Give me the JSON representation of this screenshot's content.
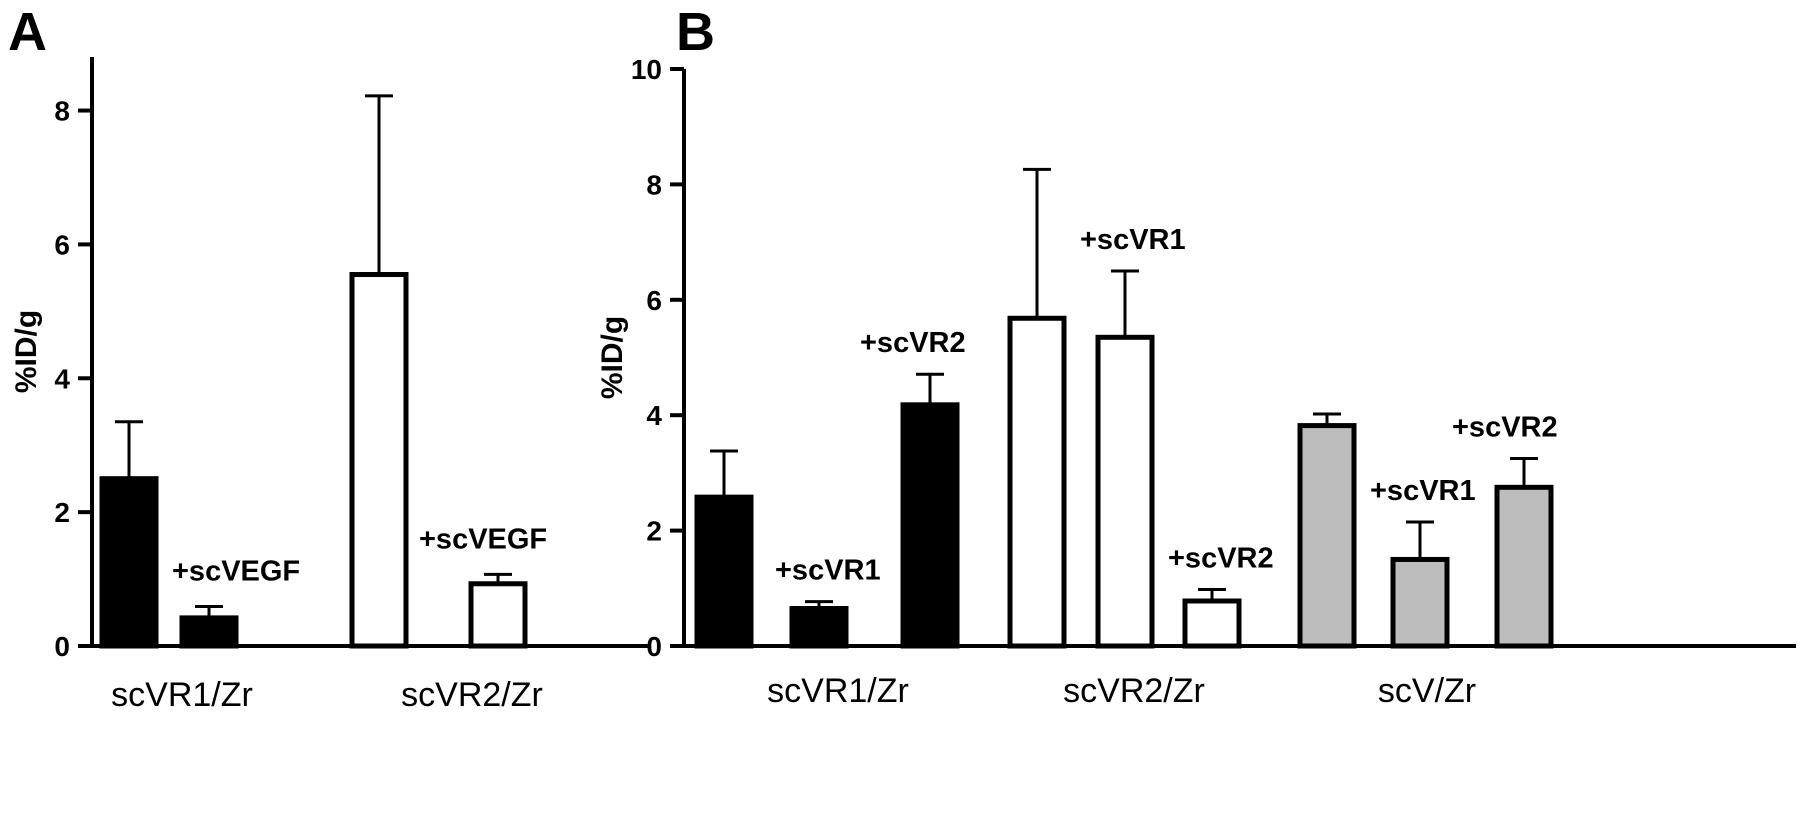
{
  "chart_data": [
    {
      "panel": "A",
      "type": "bar",
      "ylabel": "%ID/g",
      "ylim": [
        0,
        8.8
      ],
      "yticks": [
        0,
        2,
        4,
        6,
        8
      ],
      "groups": [
        "scVR1/Zr",
        "scVR2/Zr"
      ],
      "bars": [
        {
          "group": 0,
          "value": 2.5,
          "error": 0.85,
          "fill": "#000000",
          "label": ""
        },
        {
          "group": 0,
          "value": 0.42,
          "error": 0.17,
          "fill": "#000000",
          "label": "+scVEGF"
        },
        {
          "group": 1,
          "value": 5.55,
          "error": 2.67,
          "fill": "#ffffff",
          "label": ""
        },
        {
          "group": 1,
          "value": 0.93,
          "error": 0.14,
          "fill": "#ffffff",
          "label": "+scVEGF"
        }
      ]
    },
    {
      "panel": "B",
      "type": "bar",
      "ylabel": "%ID/g",
      "ylim": [
        0,
        10
      ],
      "yticks": [
        0,
        2,
        4,
        6,
        8,
        10
      ],
      "groups": [
        "scVR1/Zr",
        "scVR2/Zr",
        "scV/Zr"
      ],
      "bars": [
        {
          "group": 0,
          "value": 2.58,
          "error": 0.8,
          "fill": "#000000",
          "label": ""
        },
        {
          "group": 0,
          "value": 0.65,
          "error": 0.12,
          "fill": "#000000",
          "label": "+scVR1"
        },
        {
          "group": 0,
          "value": 4.18,
          "error": 0.53,
          "fill": "#000000",
          "label": "+scVR2"
        },
        {
          "group": 1,
          "value": 5.68,
          "error": 2.58,
          "fill": "#ffffff",
          "label": ""
        },
        {
          "group": 1,
          "value": 5.35,
          "error": 1.15,
          "fill": "#ffffff",
          "label": "+scVR1"
        },
        {
          "group": 1,
          "value": 0.78,
          "error": 0.2,
          "fill": "#ffffff",
          "label": "+scVR2"
        },
        {
          "group": 2,
          "value": 3.82,
          "error": 0.2,
          "fill": "#bdbdbd",
          "label": ""
        },
        {
          "group": 2,
          "value": 1.5,
          "error": 0.65,
          "fill": "#bdbdbd",
          "label": "+scVR1"
        },
        {
          "group": 2,
          "value": 2.75,
          "error": 0.5,
          "fill": "#bdbdbd",
          "label": "+scVR2"
        }
      ]
    }
  ]
}
